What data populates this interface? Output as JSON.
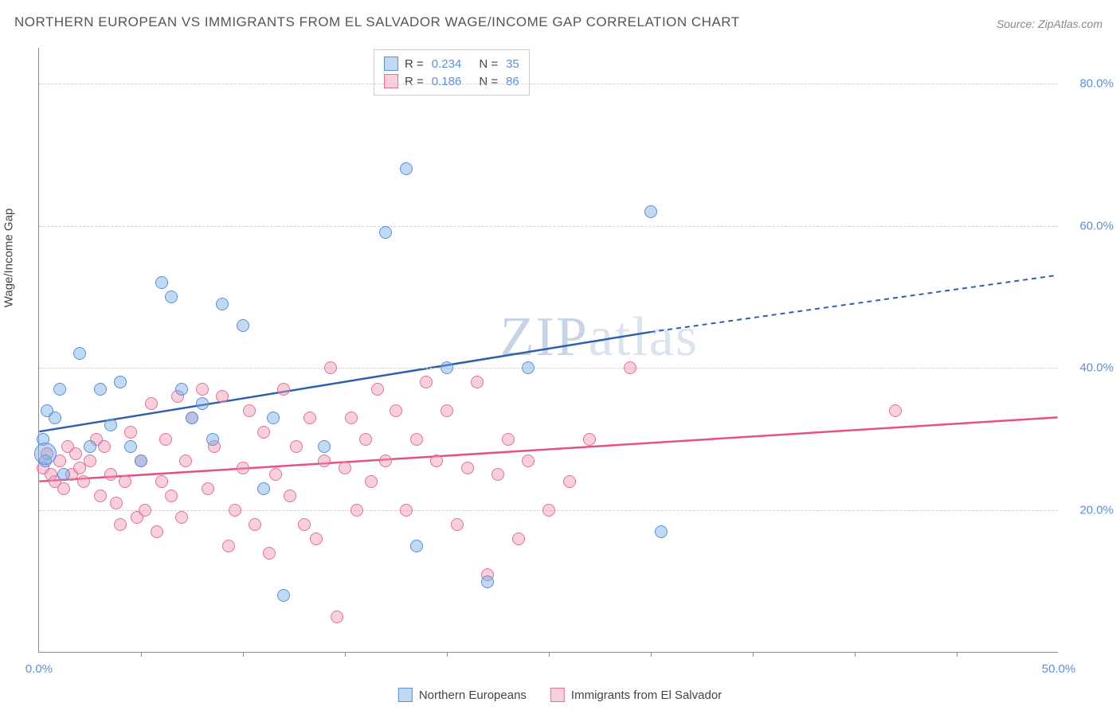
{
  "title": "NORTHERN EUROPEAN VS IMMIGRANTS FROM EL SALVADOR WAGE/INCOME GAP CORRELATION CHART",
  "source": "Source: ZipAtlas.com",
  "watermark_bold": "ZIP",
  "watermark_light": "atlas",
  "chart": {
    "type": "scatter",
    "y_axis_label": "Wage/Income Gap",
    "x_min": 0,
    "x_max": 50,
    "y_min": 0,
    "y_max": 85,
    "x_tick_label_left": "0.0%",
    "x_tick_label_right": "50.0%",
    "x_minor_ticks": [
      5,
      10,
      15,
      20,
      25,
      30,
      35,
      40,
      45
    ],
    "y_gridlines": [
      {
        "value": 20,
        "label": "20.0%"
      },
      {
        "value": 40,
        "label": "40.0%"
      },
      {
        "value": 60,
        "label": "60.0%"
      },
      {
        "value": 80,
        "label": "80.0%"
      }
    ],
    "background_color": "#ffffff",
    "grid_color": "#d0d0d0",
    "axis_color": "#888888",
    "tick_label_color": "#5b8fd6",
    "series": [
      {
        "name": "Northern Europeans",
        "legend_label": "Northern Europeans",
        "marker_fill": "rgba(120,170,230,0.45)",
        "marker_stroke": "#5b8fd6",
        "trend_color": "#2f5fb0",
        "R": "0.234",
        "N": "35",
        "trend": {
          "x1": 0,
          "y1": 31,
          "x_solid_end": 30,
          "y_solid_end": 45,
          "x2": 50,
          "y2": 53
        },
        "marker_radius": 8,
        "points": [
          [
            0.2,
            30
          ],
          [
            0.3,
            27
          ],
          [
            0.4,
            34
          ],
          [
            0.8,
            33
          ],
          [
            1,
            37
          ],
          [
            1.2,
            25
          ],
          [
            2,
            42
          ],
          [
            2.5,
            29
          ],
          [
            3,
            37
          ],
          [
            3.5,
            32
          ],
          [
            4,
            38
          ],
          [
            4.5,
            29
          ],
          [
            5,
            27
          ],
          [
            6,
            52
          ],
          [
            6.5,
            50
          ],
          [
            7,
            37
          ],
          [
            7.5,
            33
          ],
          [
            8,
            35
          ],
          [
            8.5,
            30
          ],
          [
            9,
            49
          ],
          [
            10,
            46
          ],
          [
            11,
            23
          ],
          [
            11.5,
            33
          ],
          [
            12,
            8
          ],
          [
            14,
            29
          ],
          [
            17,
            59
          ],
          [
            18,
            68
          ],
          [
            18.5,
            15
          ],
          [
            20,
            40
          ],
          [
            22,
            10
          ],
          [
            24,
            40
          ],
          [
            30,
            62
          ],
          [
            30.5,
            17
          ]
        ],
        "big_points": [
          [
            0.3,
            28,
            14
          ]
        ]
      },
      {
        "name": "Immigrants from El Salvador",
        "legend_label": "Immigrants from El Salvador",
        "marker_fill": "rgba(240,150,175,0.45)",
        "marker_stroke": "#e27298",
        "trend_color": "#e6527e",
        "R": "0.186",
        "N": "86",
        "trend": {
          "x1": 0,
          "y1": 24,
          "x_solid_end": 50,
          "y_solid_end": 33,
          "x2": 50,
          "y2": 33
        },
        "marker_radius": 8,
        "points": [
          [
            0.2,
            26
          ],
          [
            0.4,
            28
          ],
          [
            0.6,
            25
          ],
          [
            0.8,
            24
          ],
          [
            1,
            27
          ],
          [
            1.2,
            23
          ],
          [
            1.4,
            29
          ],
          [
            1.6,
            25
          ],
          [
            1.8,
            28
          ],
          [
            2,
            26
          ],
          [
            2.2,
            24
          ],
          [
            2.5,
            27
          ],
          [
            2.8,
            30
          ],
          [
            3,
            22
          ],
          [
            3.2,
            29
          ],
          [
            3.5,
            25
          ],
          [
            3.8,
            21
          ],
          [
            4,
            18
          ],
          [
            4.2,
            24
          ],
          [
            4.5,
            31
          ],
          [
            4.8,
            19
          ],
          [
            5,
            27
          ],
          [
            5.2,
            20
          ],
          [
            5.5,
            35
          ],
          [
            5.8,
            17
          ],
          [
            6,
            24
          ],
          [
            6.2,
            30
          ],
          [
            6.5,
            22
          ],
          [
            6.8,
            36
          ],
          [
            7,
            19
          ],
          [
            7.2,
            27
          ],
          [
            7.5,
            33
          ],
          [
            8,
            37
          ],
          [
            8.3,
            23
          ],
          [
            8.6,
            29
          ],
          [
            9,
            36
          ],
          [
            9.3,
            15
          ],
          [
            9.6,
            20
          ],
          [
            10,
            26
          ],
          [
            10.3,
            34
          ],
          [
            10.6,
            18
          ],
          [
            11,
            31
          ],
          [
            11.3,
            14
          ],
          [
            11.6,
            25
          ],
          [
            12,
            37
          ],
          [
            12.3,
            22
          ],
          [
            12.6,
            29
          ],
          [
            13,
            18
          ],
          [
            13.3,
            33
          ],
          [
            13.6,
            16
          ],
          [
            14,
            27
          ],
          [
            14.3,
            40
          ],
          [
            14.6,
            5
          ],
          [
            15,
            26
          ],
          [
            15.3,
            33
          ],
          [
            15.6,
            20
          ],
          [
            16,
            30
          ],
          [
            16.3,
            24
          ],
          [
            16.6,
            37
          ],
          [
            17,
            27
          ],
          [
            17.5,
            34
          ],
          [
            18,
            20
          ],
          [
            18.5,
            30
          ],
          [
            19,
            38
          ],
          [
            19.5,
            27
          ],
          [
            20,
            34
          ],
          [
            20.5,
            18
          ],
          [
            21,
            26
          ],
          [
            21.5,
            38
          ],
          [
            22,
            11
          ],
          [
            22.5,
            25
          ],
          [
            23,
            30
          ],
          [
            23.5,
            16
          ],
          [
            24,
            27
          ],
          [
            25,
            20
          ],
          [
            26,
            24
          ],
          [
            27,
            30
          ],
          [
            29,
            40
          ],
          [
            42,
            34
          ]
        ],
        "big_points": []
      }
    ]
  }
}
